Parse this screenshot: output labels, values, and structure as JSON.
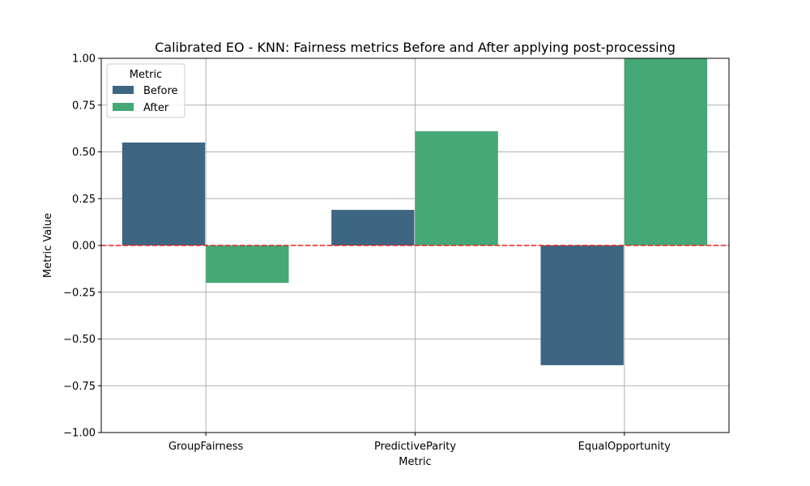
{
  "chart_data": {
    "type": "bar",
    "title": "Calibrated EO - KNN: Fairness metrics Before and After applying post-processing",
    "xlabel": "Metric",
    "ylabel": "Metric Value",
    "categories": [
      "GroupFairness",
      "PredictiveParity",
      "EqualOpportunity"
    ],
    "series": [
      {
        "name": "Before",
        "values": [
          0.55,
          0.19,
          -0.64
        ],
        "color": "#3e6582"
      },
      {
        "name": "After",
        "values": [
          -0.2,
          0.61,
          1.0
        ],
        "color": "#45a877"
      }
    ],
    "ylim": [
      -1.0,
      1.0
    ],
    "yticks": [
      -1.0,
      -0.75,
      -0.5,
      -0.25,
      0.0,
      0.25,
      0.5,
      0.75,
      1.0
    ],
    "ytick_labels": [
      "−1.00",
      "−0.75",
      "−0.50",
      "−0.25",
      "0.00",
      "0.25",
      "0.50",
      "0.75",
      "1.00"
    ],
    "grid": true,
    "legend": {
      "title": "Metric",
      "placement": "top-left"
    },
    "reference_line": {
      "y": 0.0,
      "color": "#e8221c",
      "style": "dashed"
    }
  }
}
